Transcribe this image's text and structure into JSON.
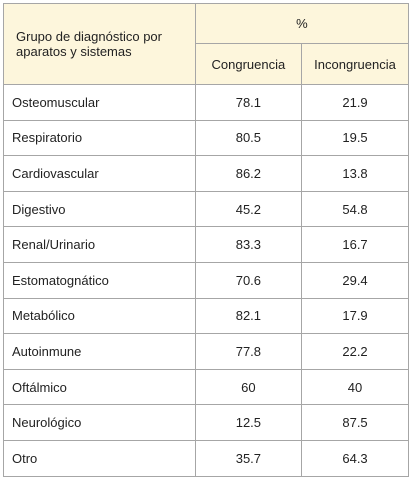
{
  "header": {
    "group": "Grupo de diagnóstico por aparatos y sistemas",
    "percent": "%",
    "columns": [
      "Congruencia",
      "Incongruencia"
    ]
  },
  "table": {
    "rows": [
      [
        "Osteomuscular",
        "78.1",
        "21.9"
      ],
      [
        "Respiratorio",
        "80.5",
        "19.5"
      ],
      [
        "Cardiovascular",
        "86.2",
        "13.8"
      ],
      [
        "Digestivo",
        "45.2",
        "54.8"
      ],
      [
        "Renal/Urinario",
        "83.3",
        "16.7"
      ],
      [
        "Estomatognático",
        "70.6",
        "29.4"
      ],
      [
        "Metabólico",
        "82.1",
        "17.9"
      ],
      [
        "Autoinmune",
        "77.8",
        "22.2"
      ],
      [
        "Oftálmico",
        "60",
        "40"
      ],
      [
        "Neurológico",
        "12.5",
        "87.5"
      ],
      [
        "Otro",
        "35.7",
        "64.3"
      ]
    ]
  }
}
